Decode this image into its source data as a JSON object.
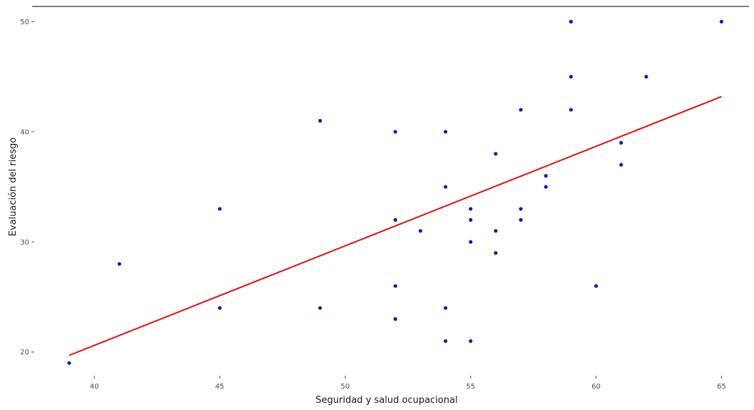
{
  "chart_data": {
    "type": "scatter",
    "title": "",
    "xlabel": "Seguridad y salud ocupacional",
    "ylabel": "Evaluación del riesgo",
    "xlim": [
      38.8,
      65.3
    ],
    "ylim": [
      18.3,
      50.8
    ],
    "x_ticks": [
      40,
      45,
      50,
      55,
      60,
      65
    ],
    "y_ticks": [
      20,
      30,
      40,
      50
    ],
    "grid": false,
    "legend": "none",
    "points": [
      {
        "x": 39,
        "y": 19
      },
      {
        "x": 41,
        "y": 28
      },
      {
        "x": 45,
        "y": 33
      },
      {
        "x": 45,
        "y": 24
      },
      {
        "x": 49,
        "y": 41
      },
      {
        "x": 49,
        "y": 24
      },
      {
        "x": 52,
        "y": 40
      },
      {
        "x": 52,
        "y": 32
      },
      {
        "x": 52,
        "y": 26
      },
      {
        "x": 52,
        "y": 23
      },
      {
        "x": 53,
        "y": 31
      },
      {
        "x": 54,
        "y": 40
      },
      {
        "x": 54,
        "y": 35
      },
      {
        "x": 54,
        "y": 24
      },
      {
        "x": 54,
        "y": 21
      },
      {
        "x": 55,
        "y": 33
      },
      {
        "x": 55,
        "y": 32
      },
      {
        "x": 55,
        "y": 30
      },
      {
        "x": 55,
        "y": 21
      },
      {
        "x": 56,
        "y": 38
      },
      {
        "x": 56,
        "y": 31
      },
      {
        "x": 56,
        "y": 29
      },
      {
        "x": 57,
        "y": 42
      },
      {
        "x": 57,
        "y": 33
      },
      {
        "x": 57,
        "y": 32
      },
      {
        "x": 58,
        "y": 36
      },
      {
        "x": 58,
        "y": 35
      },
      {
        "x": 59,
        "y": 50
      },
      {
        "x": 59,
        "y": 45
      },
      {
        "x": 59,
        "y": 42
      },
      {
        "x": 60,
        "y": 26
      },
      {
        "x": 61,
        "y": 39
      },
      {
        "x": 61,
        "y": 37
      },
      {
        "x": 62,
        "y": 45
      },
      {
        "x": 65,
        "y": 50
      }
    ],
    "fit_line": {
      "x": [
        39,
        65
      ],
      "y": [
        19.7,
        43.2
      ]
    },
    "colors": {
      "points": "#1a1aa6",
      "fit_line": "#e01010",
      "axis_text": "#4d4d4d",
      "top_rule": "#333333"
    }
  }
}
